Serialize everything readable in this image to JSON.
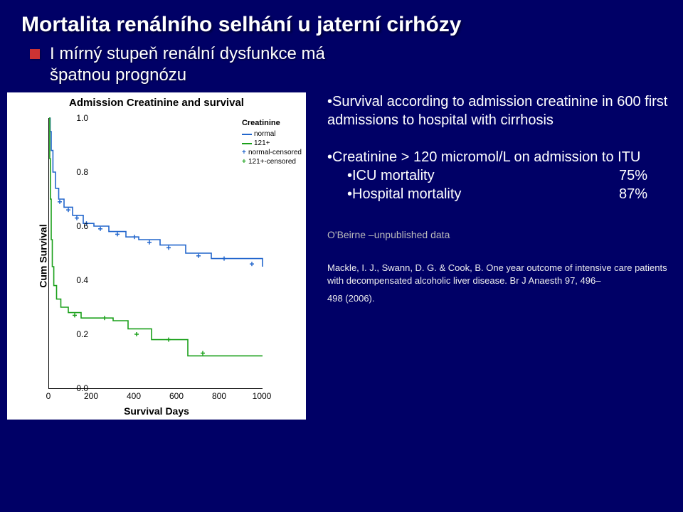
{
  "title": "Mortalita renálního selhání u jaterní cirhózy",
  "bullet": "I mírný stupeň renální dysfunkce má",
  "bullet_cont": "špatnou prognózu",
  "chart": {
    "title": "Admission Creatinine and survival",
    "ylabel": "Cum Survival",
    "xlabel": "Survival Days",
    "xlim": [
      0,
      1000
    ],
    "ylim": [
      0.0,
      1.0
    ],
    "xtick_step": 200,
    "ytick_step": 0.2,
    "legend_title": "Creatinine",
    "series": [
      {
        "name": "normal",
        "color": "#2266cc",
        "censored": false,
        "points": [
          [
            0,
            1.0
          ],
          [
            5,
            0.95
          ],
          [
            10,
            0.88
          ],
          [
            18,
            0.8
          ],
          [
            30,
            0.74
          ],
          [
            45,
            0.7
          ],
          [
            70,
            0.67
          ],
          [
            110,
            0.64
          ],
          [
            160,
            0.61
          ],
          [
            210,
            0.6
          ],
          [
            280,
            0.58
          ],
          [
            360,
            0.56
          ],
          [
            420,
            0.55
          ],
          [
            520,
            0.53
          ],
          [
            640,
            0.5
          ],
          [
            760,
            0.48
          ],
          [
            900,
            0.48
          ],
          [
            1000,
            0.45
          ]
        ],
        "cens_marks": [
          [
            50,
            0.69
          ],
          [
            90,
            0.66
          ],
          [
            130,
            0.63
          ],
          [
            175,
            0.61
          ],
          [
            240,
            0.59
          ],
          [
            320,
            0.57
          ],
          [
            400,
            0.56
          ],
          [
            470,
            0.54
          ],
          [
            560,
            0.52
          ],
          [
            700,
            0.49
          ],
          [
            820,
            0.48
          ],
          [
            950,
            0.46
          ]
        ]
      },
      {
        "name": "121+",
        "color": "#1aa01a",
        "censored": false,
        "points": [
          [
            0,
            1.0
          ],
          [
            3,
            0.85
          ],
          [
            6,
            0.7
          ],
          [
            10,
            0.55
          ],
          [
            15,
            0.45
          ],
          [
            22,
            0.38
          ],
          [
            35,
            0.33
          ],
          [
            55,
            0.3
          ],
          [
            90,
            0.28
          ],
          [
            150,
            0.26
          ],
          [
            220,
            0.26
          ],
          [
            300,
            0.25
          ],
          [
            370,
            0.22
          ],
          [
            480,
            0.18
          ],
          [
            620,
            0.18
          ],
          [
            650,
            0.12
          ],
          [
            1000,
            0.12
          ]
        ],
        "cens_marks": [
          [
            120,
            0.27
          ],
          [
            260,
            0.26
          ],
          [
            410,
            0.2
          ],
          [
            560,
            0.18
          ],
          [
            720,
            0.13
          ]
        ]
      },
      {
        "name": "normal-censored",
        "color": "#2266cc",
        "censored": true
      },
      {
        "name": "121+-censored",
        "color": "#1aa01a",
        "censored": true
      }
    ],
    "background_color": "#ffffff"
  },
  "side": {
    "survival_note": "Survival according to admission creatinine in 600 first admissions to hospital with cirrhosis",
    "threshold_line": "Creatinine > 120 micromol/L on admission to ITU",
    "rows": [
      {
        "label": "ICU mortality",
        "pct": "75%"
      },
      {
        "label": "Hospital mortality",
        "pct": "87%"
      }
    ],
    "unpublished": "O'Beirne –unpublished data",
    "citation_line1": "Mackle, I. J., Swann, D. G. & Cook, B. One year outcome of intensive care patients with decompensated alcoholic liver disease. Br J Anaesth 97, 496–",
    "citation_line2": "498 (2006)."
  }
}
